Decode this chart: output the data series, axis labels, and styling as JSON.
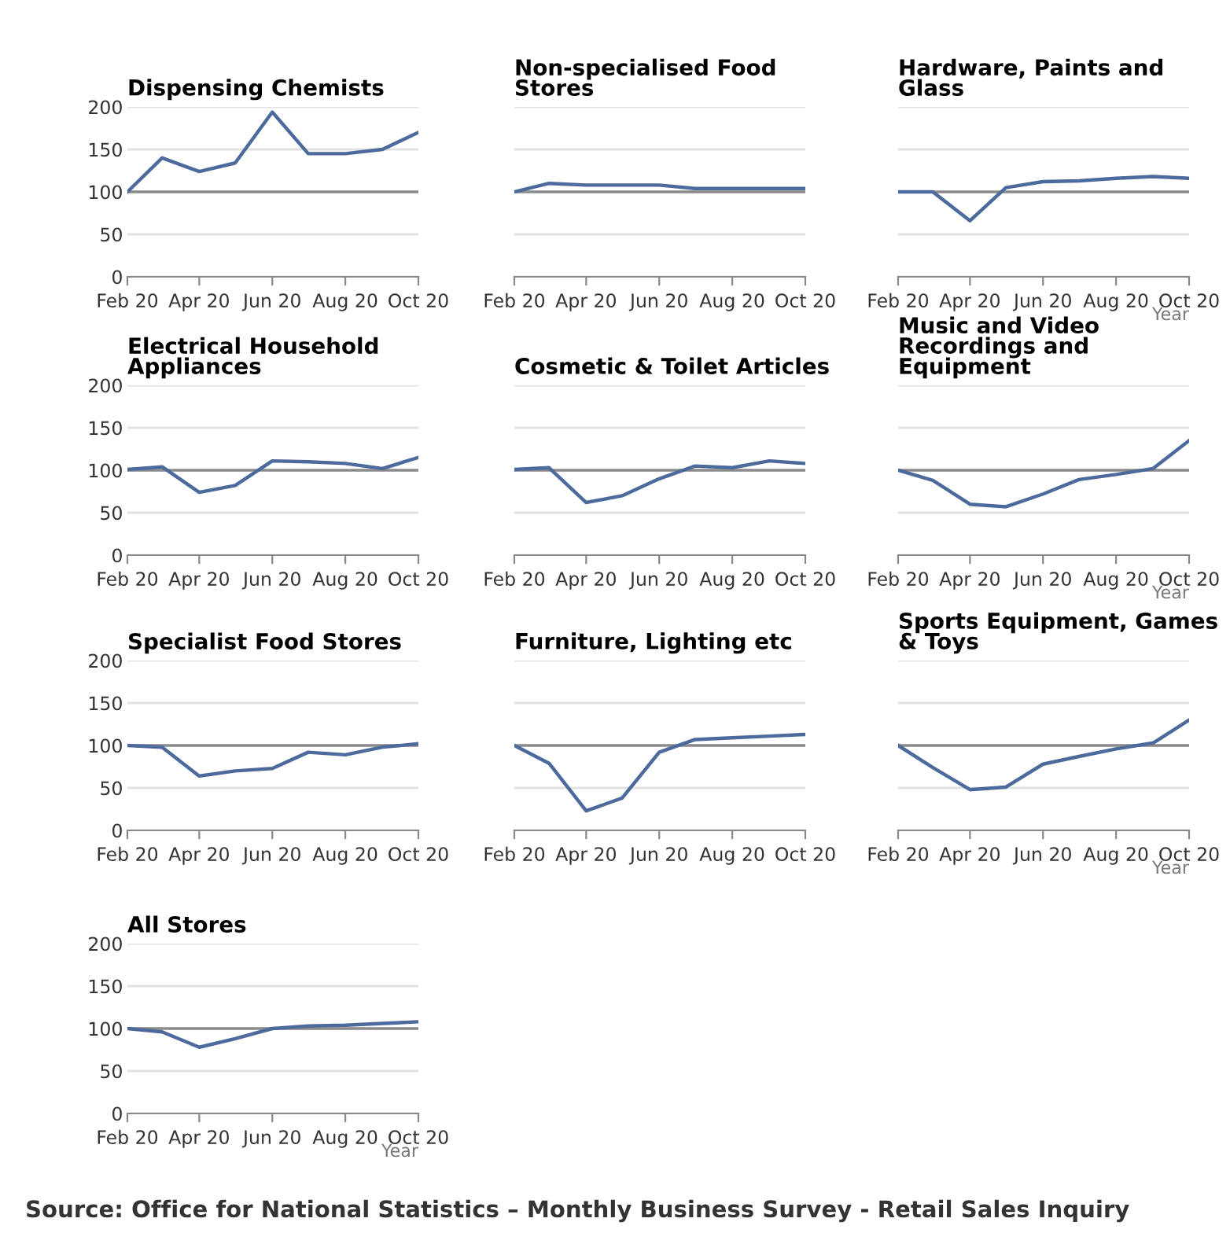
{
  "chart_data": [
    {
      "type": "line",
      "title": "Dispensing Chemists",
      "x": [
        "2020-02",
        "2020-03",
        "2020-04",
        "2020-05",
        "2020-06",
        "2020-07",
        "2020-08",
        "2020-09",
        "2020-10"
      ],
      "series": [
        {
          "color": "#4c6a9c",
          "values": [
            100,
            140,
            124,
            134,
            194,
            145,
            145,
            150,
            170
          ]
        }
      ],
      "xlim": [
        "2020-02",
        "2020-10"
      ],
      "xticks": [
        {
          "value": "2020-02",
          "label": "Feb 20"
        },
        {
          "value": "2020-04",
          "label": "Apr 20"
        },
        {
          "value": "2020-06",
          "label": "Jun 20"
        },
        {
          "value": "2020-08",
          "label": "Aug 20"
        },
        {
          "value": "2020-10",
          "label": "Oct 20"
        }
      ],
      "ylim": [
        0,
        200
      ],
      "yticks": [
        0,
        50,
        100,
        150,
        200
      ],
      "grid": "y",
      "ref_lines": [
        {
          "axis": "y",
          "value": 100,
          "color": "#8c8c8c"
        }
      ]
    },
    {
      "type": "line",
      "title": "Non-specialised Food Stores",
      "x": [
        "2020-02",
        "2020-03",
        "2020-04",
        "2020-05",
        "2020-06",
        "2020-07",
        "2020-08",
        "2020-09",
        "2020-10"
      ],
      "series": [
        {
          "color": "#4c6a9c",
          "values": [
            100,
            110,
            108,
            108,
            108,
            104,
            104,
            104,
            104
          ]
        }
      ],
      "xlim": [
        "2020-02",
        "2020-10"
      ],
      "xticks": [
        {
          "value": "2020-02",
          "label": "Feb 20"
        },
        {
          "value": "2020-04",
          "label": "Apr 20"
        },
        {
          "value": "2020-06",
          "label": "Jun 20"
        },
        {
          "value": "2020-08",
          "label": "Aug 20"
        },
        {
          "value": "2020-10",
          "label": "Oct 20"
        }
      ],
      "ylim": [
        0,
        200
      ],
      "yticks": [
        0,
        50,
        100,
        150,
        200
      ],
      "grid": "y",
      "tick_labels": "x",
      "ref_lines": [
        {
          "axis": "y",
          "value": 100,
          "color": "#8c8c8c"
        }
      ]
    },
    {
      "type": "line",
      "title": "Hardware, Paints and Glass",
      "xlabel": "Year",
      "x": [
        "2020-02",
        "2020-03",
        "2020-04",
        "2020-05",
        "2020-06",
        "2020-07",
        "2020-08",
        "2020-09",
        "2020-10"
      ],
      "series": [
        {
          "color": "#4c6a9c",
          "values": [
            100,
            100,
            66,
            105,
            112,
            113,
            116,
            118,
            116
          ]
        }
      ],
      "xlim": [
        "2020-02",
        "2020-10"
      ],
      "xticks": [
        {
          "value": "2020-02",
          "label": "Feb 20"
        },
        {
          "value": "2020-04",
          "label": "Apr 20"
        },
        {
          "value": "2020-06",
          "label": "Jun 20"
        },
        {
          "value": "2020-08",
          "label": "Aug 20"
        },
        {
          "value": "2020-10",
          "label": "Oct 20"
        }
      ],
      "ylim": [
        0,
        200
      ],
      "yticks": [
        0,
        50,
        100,
        150,
        200
      ],
      "grid": "y",
      "tick_labels": "x",
      "ref_lines": [
        {
          "axis": "y",
          "value": 100,
          "color": "#8c8c8c"
        }
      ]
    },
    {
      "type": "line",
      "title": "Electrical Household Appliances",
      "x": [
        "2020-02",
        "2020-03",
        "2020-04",
        "2020-05",
        "2020-06",
        "2020-07",
        "2020-08",
        "2020-09",
        "2020-10"
      ],
      "series": [
        {
          "color": "#4c6a9c",
          "values": [
            101,
            104,
            74,
            82,
            111,
            110,
            108,
            102,
            115
          ]
        }
      ],
      "xlim": [
        "2020-02",
        "2020-10"
      ],
      "xticks": [
        {
          "value": "2020-02",
          "label": "Feb 20"
        },
        {
          "value": "2020-04",
          "label": "Apr 20"
        },
        {
          "value": "2020-06",
          "label": "Jun 20"
        },
        {
          "value": "2020-08",
          "label": "Aug 20"
        },
        {
          "value": "2020-10",
          "label": "Oct 20"
        }
      ],
      "ylim": [
        0,
        200
      ],
      "yticks": [
        0,
        50,
        100,
        150,
        200
      ],
      "grid": "y",
      "ref_lines": [
        {
          "axis": "y",
          "value": 100,
          "color": "#8c8c8c"
        }
      ]
    },
    {
      "type": "line",
      "title": "Cosmetic & Toilet Articles",
      "x": [
        "2020-02",
        "2020-03",
        "2020-04",
        "2020-05",
        "2020-06",
        "2020-07",
        "2020-08",
        "2020-09",
        "2020-10"
      ],
      "series": [
        {
          "color": "#4c6a9c",
          "values": [
            101,
            103,
            62,
            70,
            90,
            105,
            103,
            111,
            108
          ]
        }
      ],
      "xlim": [
        "2020-02",
        "2020-10"
      ],
      "xticks": [
        {
          "value": "2020-02",
          "label": "Feb 20"
        },
        {
          "value": "2020-04",
          "label": "Apr 20"
        },
        {
          "value": "2020-06",
          "label": "Jun 20"
        },
        {
          "value": "2020-08",
          "label": "Aug 20"
        },
        {
          "value": "2020-10",
          "label": "Oct 20"
        }
      ],
      "ylim": [
        0,
        200
      ],
      "yticks": [
        0,
        50,
        100,
        150,
        200
      ],
      "grid": "y",
      "tick_labels": "x",
      "ref_lines": [
        {
          "axis": "y",
          "value": 100,
          "color": "#8c8c8c"
        }
      ]
    },
    {
      "type": "line",
      "title": "Music and Video Recordings and Equipment",
      "xlabel": "Year",
      "x": [
        "2020-02",
        "2020-03",
        "2020-04",
        "2020-05",
        "2020-06",
        "2020-07",
        "2020-08",
        "2020-09",
        "2020-10"
      ],
      "series": [
        {
          "color": "#4c6a9c",
          "values": [
            100,
            88,
            60,
            57,
            72,
            89,
            95,
            102,
            135
          ]
        }
      ],
      "xlim": [
        "2020-02",
        "2020-10"
      ],
      "xticks": [
        {
          "value": "2020-02",
          "label": "Feb 20"
        },
        {
          "value": "2020-04",
          "label": "Apr 20"
        },
        {
          "value": "2020-06",
          "label": "Jun 20"
        },
        {
          "value": "2020-08",
          "label": "Aug 20"
        },
        {
          "value": "2020-10",
          "label": "Oct 20"
        }
      ],
      "ylim": [
        0,
        200
      ],
      "yticks": [
        0,
        50,
        100,
        150,
        200
      ],
      "grid": "y",
      "tick_labels": "x",
      "ref_lines": [
        {
          "axis": "y",
          "value": 100,
          "color": "#8c8c8c"
        }
      ]
    },
    {
      "type": "line",
      "title": "Specialist Food Stores",
      "x": [
        "2020-02",
        "2020-03",
        "2020-04",
        "2020-05",
        "2020-06",
        "2020-07",
        "2020-08",
        "2020-09",
        "2020-10"
      ],
      "series": [
        {
          "color": "#4c6a9c",
          "values": [
            100,
            98,
            64,
            70,
            73,
            92,
            89,
            98,
            102
          ]
        }
      ],
      "xlim": [
        "2020-02",
        "2020-10"
      ],
      "xticks": [
        {
          "value": "2020-02",
          "label": "Feb 20"
        },
        {
          "value": "2020-04",
          "label": "Apr 20"
        },
        {
          "value": "2020-06",
          "label": "Jun 20"
        },
        {
          "value": "2020-08",
          "label": "Aug 20"
        },
        {
          "value": "2020-10",
          "label": "Oct 20"
        }
      ],
      "ylim": [
        0,
        200
      ],
      "yticks": [
        0,
        50,
        100,
        150,
        200
      ],
      "grid": "y",
      "ref_lines": [
        {
          "axis": "y",
          "value": 100,
          "color": "#8c8c8c"
        }
      ]
    },
    {
      "type": "line",
      "title": "Furniture, Lighting etc",
      "x": [
        "2020-02",
        "2020-03",
        "2020-04",
        "2020-05",
        "2020-06",
        "2020-07",
        "2020-08",
        "2020-09",
        "2020-10"
      ],
      "series": [
        {
          "color": "#4c6a9c",
          "values": [
            100,
            79,
            23,
            38,
            92,
            107,
            109,
            111,
            113
          ]
        }
      ],
      "xlim": [
        "2020-02",
        "2020-10"
      ],
      "xticks": [
        {
          "value": "2020-02",
          "label": "Feb 20"
        },
        {
          "value": "2020-04",
          "label": "Apr 20"
        },
        {
          "value": "2020-06",
          "label": "Jun 20"
        },
        {
          "value": "2020-08",
          "label": "Aug 20"
        },
        {
          "value": "2020-10",
          "label": "Oct 20"
        }
      ],
      "ylim": [
        0,
        200
      ],
      "yticks": [
        0,
        50,
        100,
        150,
        200
      ],
      "grid": "y",
      "tick_labels": "x",
      "ref_lines": [
        {
          "axis": "y",
          "value": 100,
          "color": "#8c8c8c"
        }
      ]
    },
    {
      "type": "line",
      "title": "Sports Equipment, Games & Toys",
      "xlabel": "Year",
      "x": [
        "2020-02",
        "2020-03",
        "2020-04",
        "2020-05",
        "2020-06",
        "2020-07",
        "2020-08",
        "2020-09",
        "2020-10"
      ],
      "series": [
        {
          "color": "#4c6a9c",
          "values": [
            100,
            74,
            48,
            51,
            78,
            87,
            96,
            103,
            130
          ]
        }
      ],
      "xlim": [
        "2020-02",
        "2020-10"
      ],
      "xticks": [
        {
          "value": "2020-02",
          "label": "Feb 20"
        },
        {
          "value": "2020-04",
          "label": "Apr 20"
        },
        {
          "value": "2020-06",
          "label": "Jun 20"
        },
        {
          "value": "2020-08",
          "label": "Aug 20"
        },
        {
          "value": "2020-10",
          "label": "Oct 20"
        }
      ],
      "ylim": [
        0,
        200
      ],
      "yticks": [
        0,
        50,
        100,
        150,
        200
      ],
      "grid": "y",
      "tick_labels": "x",
      "ref_lines": [
        {
          "axis": "y",
          "value": 100,
          "color": "#8c8c8c"
        }
      ]
    },
    {
      "type": "line",
      "title": "All Stores",
      "xlabel": "Year",
      "x": [
        "2020-02",
        "2020-03",
        "2020-04",
        "2020-05",
        "2020-06",
        "2020-07",
        "2020-08",
        "2020-09",
        "2020-10"
      ],
      "series": [
        {
          "color": "#4c6a9c",
          "values": [
            100,
            96,
            78,
            88,
            100,
            103,
            104,
            106,
            108
          ]
        }
      ],
      "xlim": [
        "2020-02",
        "2020-10"
      ],
      "xticks": [
        {
          "value": "2020-02",
          "label": "Feb 20"
        },
        {
          "value": "2020-04",
          "label": "Apr 20"
        },
        {
          "value": "2020-06",
          "label": "Jun 20"
        },
        {
          "value": "2020-08",
          "label": "Aug 20"
        },
        {
          "value": "2020-10",
          "label": "Oct 20"
        }
      ],
      "ylim": [
        0,
        200
      ],
      "yticks": [
        0,
        50,
        100,
        150,
        200
      ],
      "grid": "y",
      "ref_lines": [
        {
          "axis": "y",
          "value": 100,
          "color": "#8c8c8c"
        }
      ],
      "annotations": [
        "Source: Office for National Statistics – Monthly Business Survey - Retail Sales Inquiry"
      ]
    }
  ]
}
